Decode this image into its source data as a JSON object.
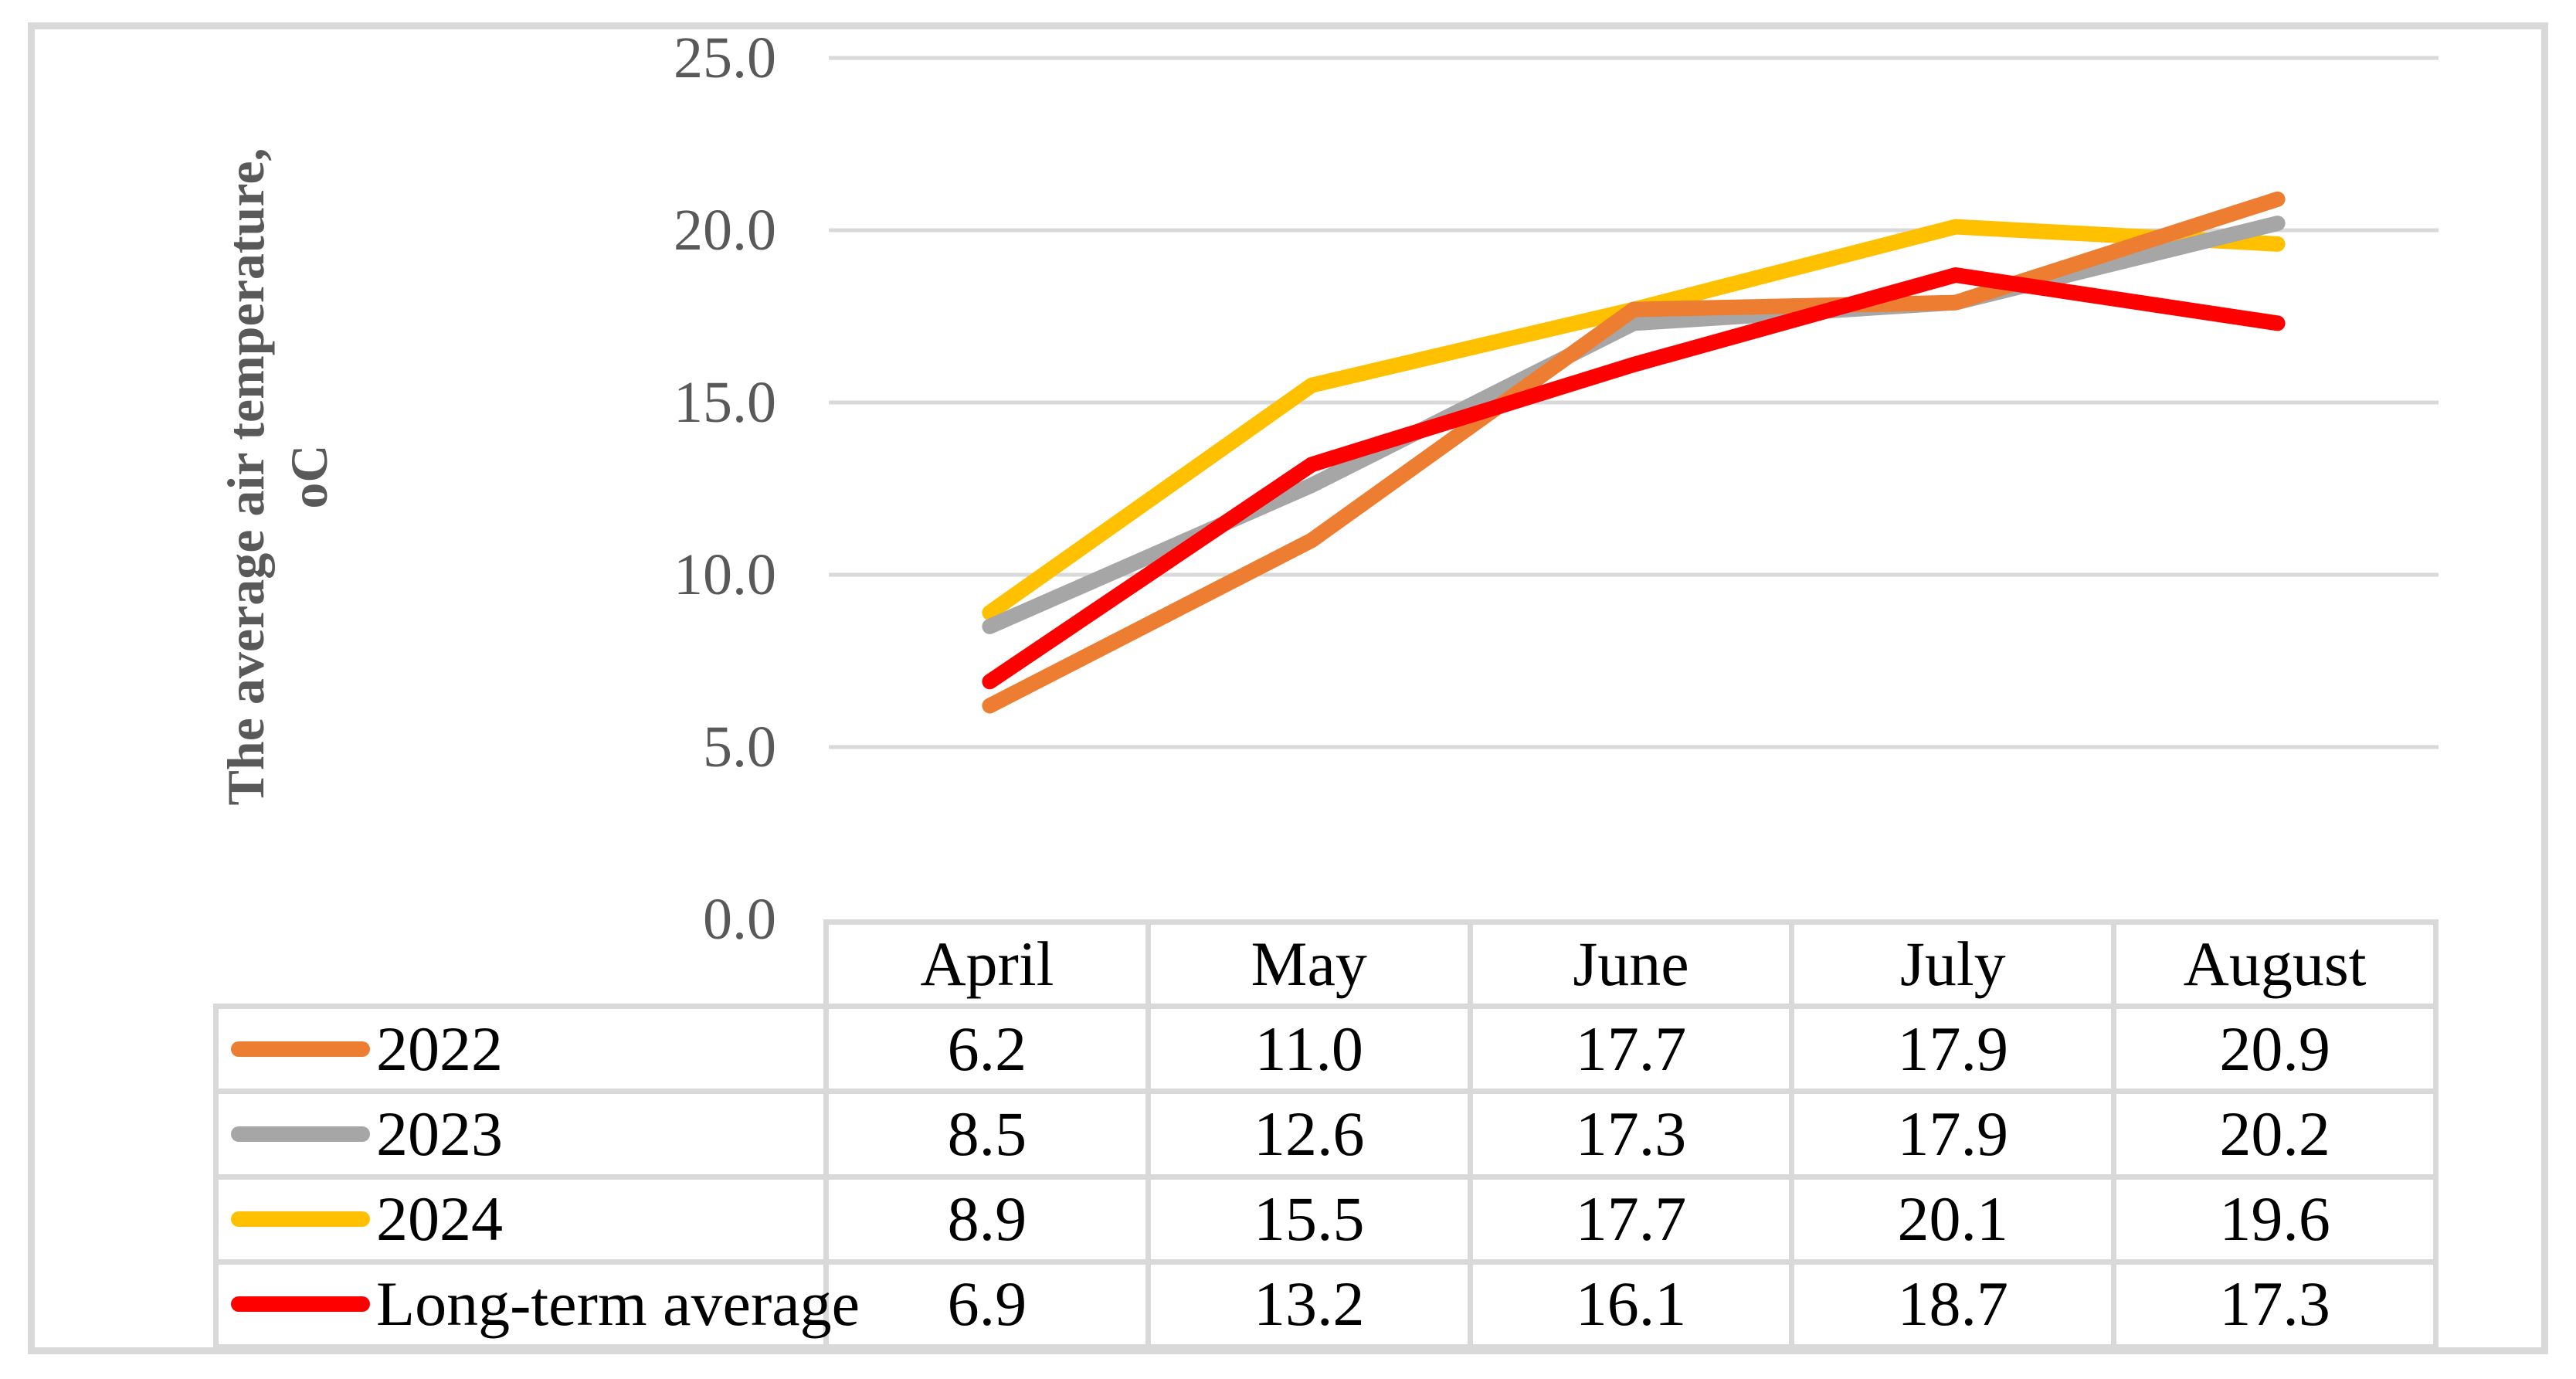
{
  "figure": {
    "background": "#FFFFFF",
    "frame_color": "#D9D9D9"
  },
  "y_axis": {
    "title_line1": "The average air temperature,",
    "title_line2": "oC",
    "title_color": "#595959",
    "tick_color": "#595959"
  },
  "chart_data": {
    "type": "line",
    "categories": [
      "April",
      "May",
      "June",
      "July",
      "August"
    ],
    "series": [
      {
        "name": "2022",
        "color": "#ED7D31",
        "values": [
          6.2,
          11.0,
          17.7,
          17.9,
          20.9
        ]
      },
      {
        "name": "2023",
        "color": "#A6A6A6",
        "values": [
          8.5,
          12.6,
          17.3,
          17.9,
          20.2
        ]
      },
      {
        "name": "2024",
        "color": "#FFC000",
        "values": [
          8.9,
          15.5,
          17.7,
          20.1,
          19.6
        ]
      },
      {
        "name": "Long-term average",
        "color": "#FF0000",
        "values": [
          6.9,
          13.2,
          16.1,
          18.7,
          17.3
        ]
      }
    ],
    "title": "",
    "xlabel": "",
    "ylabel": "The average air temperature, oC",
    "ylim": [
      0,
      25
    ],
    "yticks": [
      0,
      5,
      10,
      15,
      20,
      25
    ],
    "ytick_labels": [
      "0.0",
      "5.0",
      "10.0",
      "15.0",
      "20.0",
      "25.0"
    ],
    "grid": true,
    "gridline_color": "#D9D9D9",
    "legend_position": "data-table-left"
  },
  "table": {
    "border_color": "#D9D9D9",
    "col_headers": [
      "April",
      "May",
      "June",
      "July",
      "August"
    ],
    "rows": [
      {
        "label": "2022",
        "values": [
          "6.2",
          "11.0",
          "17.7",
          "17.9",
          "20.9"
        ]
      },
      {
        "label": "2023",
        "values": [
          "8.5",
          "12.6",
          "17.3",
          "17.9",
          "20.2"
        ]
      },
      {
        "label": "2024",
        "values": [
          "8.9",
          "15.5",
          "17.7",
          "20.1",
          "19.6"
        ]
      },
      {
        "label": "Long-term average",
        "values": [
          "6.9",
          "13.2",
          "16.1",
          "18.7",
          "17.3"
        ]
      }
    ]
  }
}
